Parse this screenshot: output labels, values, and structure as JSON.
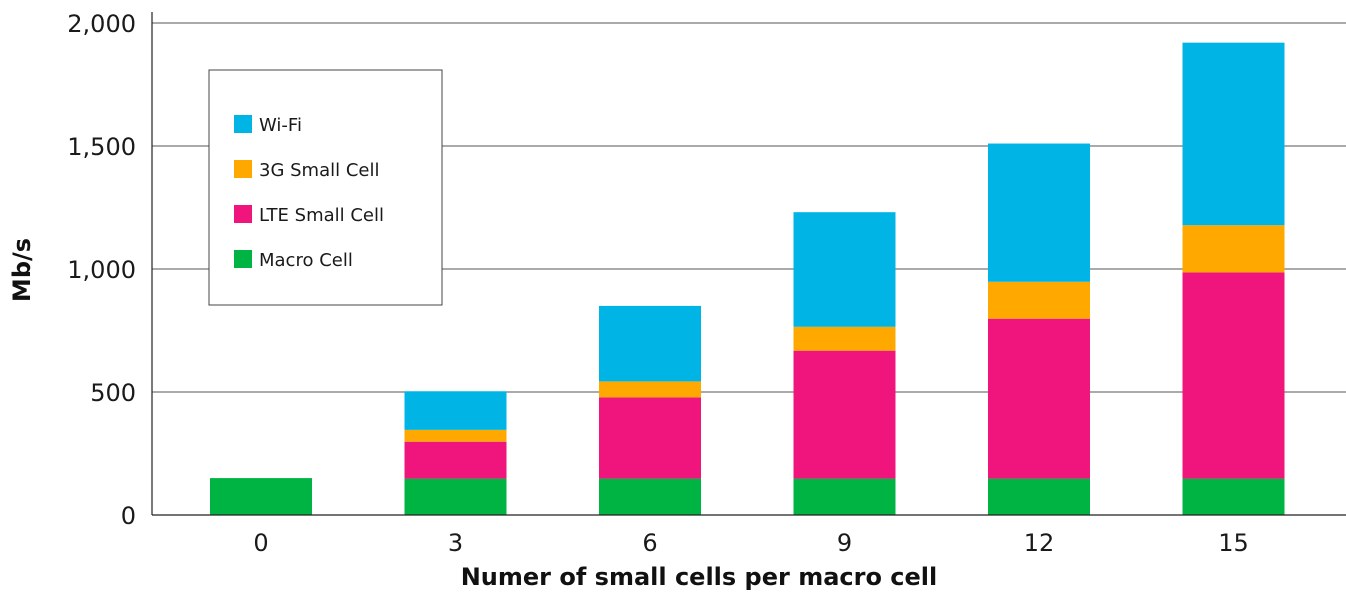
{
  "chart_data": {
    "type": "bar",
    "stacked": true,
    "categories": [
      "0",
      "3",
      "6",
      "9",
      "12",
      "15"
    ],
    "series": [
      {
        "name": "Macro Cell",
        "color": "#00b443",
        "values": [
          150,
          148,
          148,
          148,
          148,
          148
        ]
      },
      {
        "name": "LTE Small Cell",
        "color": "#f0147d",
        "values": [
          0,
          150,
          330,
          520,
          650,
          838
        ]
      },
      {
        "name": "3G Small Cell",
        "color": "#ffa800",
        "values": [
          0,
          48,
          65,
          97,
          150,
          192
        ]
      },
      {
        "name": "Wi-Fi",
        "color": "#00b5e5",
        "values": [
          0,
          157,
          307,
          466,
          562,
          742
        ]
      }
    ],
    "legend_order": [
      "Wi-Fi",
      "3G Small Cell",
      "LTE Small Cell",
      "Macro Cell"
    ],
    "legend_position": "top-left",
    "title": "",
    "xlabel": "Numer of small cells per macro cell",
    "ylabel": "Mb/s",
    "ylim": [
      0,
      2000
    ],
    "yticks": [
      0,
      500,
      1000,
      1500,
      2000
    ],
    "ytick_labels": [
      "0",
      "500",
      "1,000",
      "1,500",
      "2,000"
    ],
    "grid": "horizontal"
  }
}
